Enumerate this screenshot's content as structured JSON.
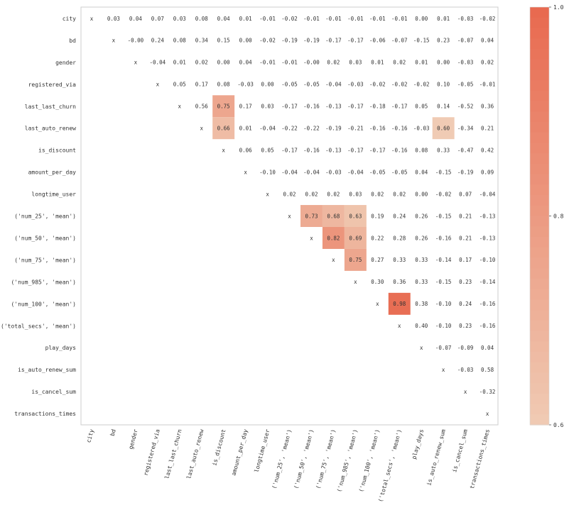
{
  "chart_data": {
    "type": "heatmap",
    "variables": [
      "city",
      "bd",
      "gender",
      "registered_via",
      "last_last_churn",
      "last_auto_renew",
      "is_discount",
      "amount_per_day",
      "longtime_user",
      "('num_25', 'mean')",
      "('num_50', 'mean')",
      "('num_75', 'mean')",
      "('num_985', 'mean')",
      "('num_100', 'mean')",
      "('total_secs', 'mean')",
      "play_days",
      "is_auto_renew_sum",
      "is_cancel_sum",
      "transactions_times"
    ],
    "diagonal_label": "x",
    "rows": [
      [
        "x",
        "0.03",
        "0.04",
        "0.07",
        "0.03",
        "0.08",
        "0.04",
        "0.01",
        "-0.01",
        "-0.02",
        "-0.01",
        "-0.01",
        "-0.01",
        "-0.01",
        "-0.01",
        "0.00",
        "0.01",
        "-0.03",
        "-0.02"
      ],
      [
        "",
        "x",
        "-0.00",
        "0.24",
        "0.08",
        "0.34",
        "0.15",
        "0.00",
        "-0.02",
        "-0.19",
        "-0.19",
        "-0.17",
        "-0.17",
        "-0.06",
        "-0.07",
        "-0.15",
        "0.23",
        "-0.07",
        "0.04"
      ],
      [
        "",
        "",
        "x",
        "-0.04",
        "0.01",
        "0.02",
        "0.00",
        "0.04",
        "-0.01",
        "-0.01",
        "-0.00",
        "0.02",
        "0.03",
        "0.01",
        "0.02",
        "0.01",
        "0.00",
        "-0.03",
        "0.02"
      ],
      [
        "",
        "",
        "",
        "x",
        "0.05",
        "0.17",
        "0.08",
        "-0.03",
        "0.00",
        "-0.05",
        "-0.05",
        "-0.04",
        "-0.03",
        "-0.02",
        "-0.02",
        "-0.02",
        "0.10",
        "-0.05",
        "-0.01"
      ],
      [
        "",
        "",
        "",
        "",
        "x",
        "0.56",
        "0.75",
        "0.17",
        "0.03",
        "-0.17",
        "-0.16",
        "-0.13",
        "-0.17",
        "-0.18",
        "-0.17",
        "0.05",
        "0.14",
        "-0.52",
        "0.36"
      ],
      [
        "",
        "",
        "",
        "",
        "",
        "x",
        "0.66",
        "0.01",
        "-0.04",
        "-0.22",
        "-0.22",
        "-0.19",
        "-0.21",
        "-0.16",
        "-0.16",
        "-0.03",
        "0.60",
        "-0.34",
        "0.21"
      ],
      [
        "",
        "",
        "",
        "",
        "",
        "",
        "x",
        "0.06",
        "0.05",
        "-0.17",
        "-0.16",
        "-0.13",
        "-0.17",
        "-0.17",
        "-0.16",
        "0.08",
        "0.33",
        "-0.47",
        "0.42"
      ],
      [
        "",
        "",
        "",
        "",
        "",
        "",
        "",
        "x",
        "-0.10",
        "-0.04",
        "-0.04",
        "-0.03",
        "-0.04",
        "-0.05",
        "-0.05",
        "0.04",
        "-0.15",
        "-0.19",
        "0.09"
      ],
      [
        "",
        "",
        "",
        "",
        "",
        "",
        "",
        "",
        "x",
        "0.02",
        "0.02",
        "0.02",
        "0.03",
        "0.02",
        "0.02",
        "0.00",
        "-0.02",
        "0.07",
        "-0.04"
      ],
      [
        "",
        "",
        "",
        "",
        "",
        "",
        "",
        "",
        "",
        "x",
        "0.73",
        "0.68",
        "0.63",
        "0.19",
        "0.24",
        "0.26",
        "-0.15",
        "0.21",
        "-0.13"
      ],
      [
        "",
        "",
        "",
        "",
        "",
        "",
        "",
        "",
        "",
        "",
        "x",
        "0.82",
        "0.69",
        "0.22",
        "0.28",
        "0.26",
        "-0.16",
        "0.21",
        "-0.13"
      ],
      [
        "",
        "",
        "",
        "",
        "",
        "",
        "",
        "",
        "",
        "",
        "",
        "x",
        "0.75",
        "0.27",
        "0.33",
        "0.33",
        "-0.14",
        "0.17",
        "-0.10"
      ],
      [
        "",
        "",
        "",
        "",
        "",
        "",
        "",
        "",
        "",
        "",
        "",
        "",
        "x",
        "0.30",
        "0.36",
        "0.33",
        "-0.15",
        "0.23",
        "-0.14"
      ],
      [
        "",
        "",
        "",
        "",
        "",
        "",
        "",
        "",
        "",
        "",
        "",
        "",
        "",
        "x",
        "0.98",
        "0.38",
        "-0.10",
        "0.24",
        "-0.16"
      ],
      [
        "",
        "",
        "",
        "",
        "",
        "",
        "",
        "",
        "",
        "",
        "",
        "",
        "",
        "",
        "x",
        "0.40",
        "-0.10",
        "0.23",
        "-0.16"
      ],
      [
        "",
        "",
        "",
        "",
        "",
        "",
        "",
        "",
        "",
        "",
        "",
        "",
        "",
        "",
        "",
        "x",
        "-0.07",
        "-0.09",
        "0.04"
      ],
      [
        "",
        "",
        "",
        "",
        "",
        "",
        "",
        "",
        "",
        "",
        "",
        "",
        "",
        "",
        "",
        "",
        "x",
        "-0.03",
        "0.58"
      ],
      [
        "",
        "",
        "",
        "",
        "",
        "",
        "",
        "",
        "",
        "",
        "",
        "",
        "",
        "",
        "",
        "",
        "",
        "x",
        "-0.32"
      ],
      [
        "",
        "",
        "",
        "",
        "",
        "",
        "",
        "",
        "",
        "",
        "",
        "",
        "",
        "",
        "",
        "",
        "",
        "",
        "x"
      ]
    ],
    "color_range": [
      0.6,
      1.0
    ],
    "colorbar_ticks": [
      "0.6",
      "0.8",
      "1.0"
    ],
    "color_low": "#f0cbb4",
    "color_high": "#e8694f",
    "grid": false,
    "legend": "colorbar-right"
  }
}
